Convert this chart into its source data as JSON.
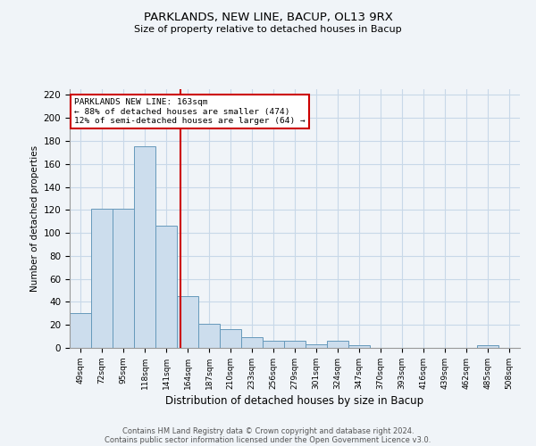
{
  "title1": "PARKLANDS, NEW LINE, BACUP, OL13 9RX",
  "title2": "Size of property relative to detached houses in Bacup",
  "xlabel": "Distribution of detached houses by size in Bacup",
  "ylabel": "Number of detached properties",
  "categories": [
    "49sqm",
    "72sqm",
    "95sqm",
    "118sqm",
    "141sqm",
    "164sqm",
    "187sqm",
    "210sqm",
    "233sqm",
    "256sqm",
    "279sqm",
    "301sqm",
    "324sqm",
    "347sqm",
    "370sqm",
    "393sqm",
    "416sqm",
    "439sqm",
    "462sqm",
    "485sqm",
    "508sqm"
  ],
  "values": [
    30,
    121,
    121,
    175,
    106,
    45,
    21,
    16,
    9,
    6,
    6,
    3,
    6,
    2,
    0,
    0,
    0,
    0,
    0,
    2,
    0
  ],
  "bar_color": "#ccdded",
  "bar_edge_color": "#6699bb",
  "grid_color": "#c8d8e8",
  "background_color": "#f0f4f8",
  "annotation_line1": "PARKLANDS NEW LINE: 163sqm",
  "annotation_line2": "← 88% of detached houses are smaller (474)",
  "annotation_line3": "12% of semi-detached houses are larger (64) →",
  "annotation_box_color": "#ffffff",
  "annotation_box_edge_color": "#cc0000",
  "vline_color": "#cc0000",
  "vline_x_index": 4.65,
  "ylim": [
    0,
    225
  ],
  "yticks": [
    0,
    20,
    40,
    60,
    80,
    100,
    120,
    140,
    160,
    180,
    200,
    220
  ],
  "footer_text1": "Contains HM Land Registry data © Crown copyright and database right 2024.",
  "footer_text2": "Contains public sector information licensed under the Open Government Licence v3.0."
}
